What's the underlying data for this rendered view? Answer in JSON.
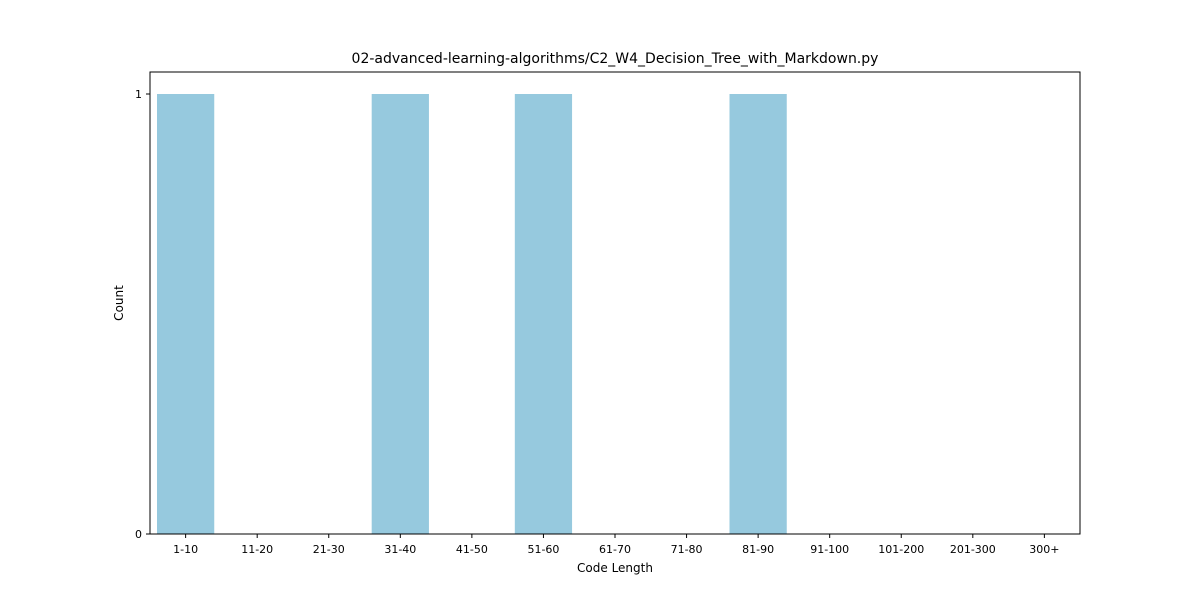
{
  "chart_data": {
    "type": "bar",
    "title": "02-advanced-learning-algorithms/C2_W4_Decision_Tree_with_Markdown.py",
    "xlabel": "Code Length",
    "ylabel": "Count",
    "categories": [
      "1-10",
      "11-20",
      "21-30",
      "31-40",
      "41-50",
      "51-60",
      "61-70",
      "71-80",
      "81-90",
      "91-100",
      "101-200",
      "201-300",
      "300+"
    ],
    "values": [
      1,
      0,
      0,
      1,
      0,
      1,
      0,
      0,
      1,
      0,
      0,
      0,
      0
    ],
    "ylim": [
      0,
      1.05
    ],
    "yticks": [
      0,
      1
    ],
    "grid": false,
    "bar_color": "#96c9de"
  }
}
